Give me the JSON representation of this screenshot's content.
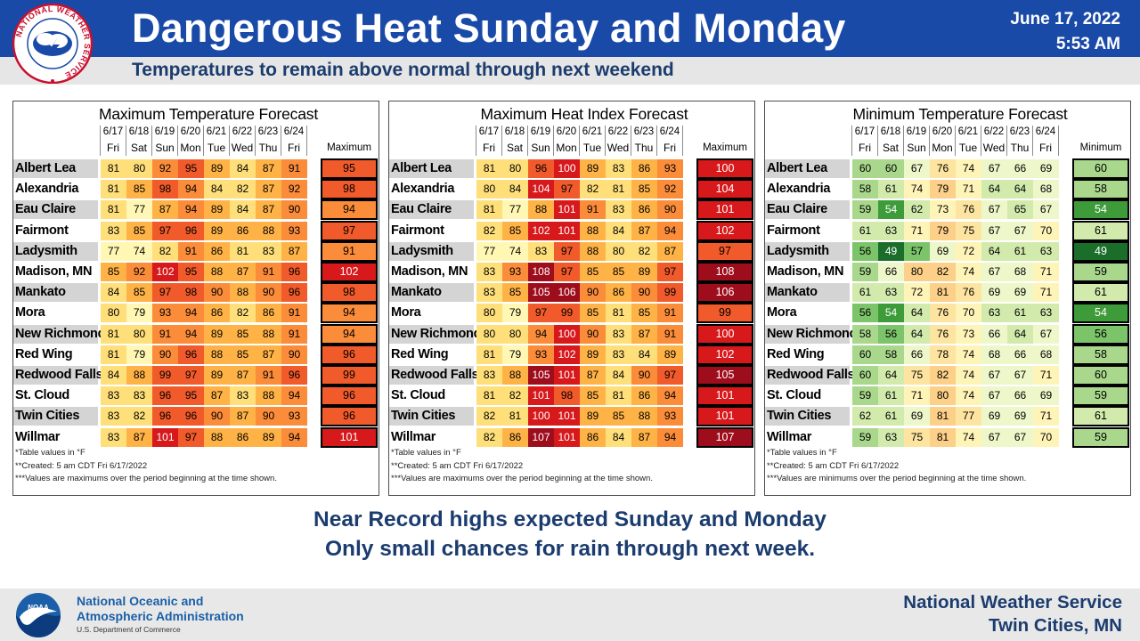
{
  "header": {
    "title": "Dangerous Heat Sunday and Monday",
    "date": "June 17, 2022",
    "time": "5:53 AM",
    "subtitle": "Temperatures to remain above normal through next weekend",
    "logo_text": "NATIONAL WEATHER SERVICE"
  },
  "columns": {
    "dates": [
      "6/17",
      "6/18",
      "6/19",
      "6/20",
      "6/21",
      "6/22",
      "6/23",
      "6/24"
    ],
    "days": [
      "Fri",
      "Sat",
      "Sun",
      "Mon",
      "Tue",
      "Wed",
      "Thu",
      "Fri"
    ]
  },
  "locations": [
    "Albert Lea",
    "Alexandria",
    "Eau Claire",
    "Fairmont",
    "Ladysmith",
    "Madison, MN",
    "Mankato",
    "Mora",
    "New Richmond",
    "Red Wing",
    "Redwood Falls",
    "St. Cloud",
    "Twin Cities",
    "Willmar"
  ],
  "tables": [
    {
      "title": "Maximum Temperature Forecast",
      "summary_label": "Maximum",
      "kind": "heat",
      "values": [
        [
          81,
          80,
          92,
          95,
          89,
          84,
          87,
          91
        ],
        [
          81,
          85,
          98,
          94,
          84,
          82,
          87,
          92
        ],
        [
          81,
          77,
          87,
          94,
          89,
          84,
          87,
          90
        ],
        [
          83,
          85,
          97,
          96,
          89,
          86,
          88,
          93
        ],
        [
          77,
          74,
          82,
          91,
          86,
          81,
          83,
          87
        ],
        [
          85,
          92,
          102,
          95,
          88,
          87,
          91,
          96
        ],
        [
          84,
          85,
          97,
          98,
          90,
          88,
          90,
          96
        ],
        [
          80,
          79,
          93,
          94,
          86,
          82,
          86,
          91
        ],
        [
          81,
          80,
          91,
          94,
          89,
          85,
          88,
          91
        ],
        [
          81,
          79,
          90,
          96,
          88,
          85,
          87,
          90
        ],
        [
          84,
          88,
          99,
          97,
          89,
          87,
          91,
          96
        ],
        [
          83,
          83,
          96,
          95,
          87,
          83,
          88,
          94
        ],
        [
          83,
          82,
          96,
          96,
          90,
          87,
          90,
          93
        ],
        [
          83,
          87,
          101,
          97,
          88,
          86,
          89,
          94
        ]
      ],
      "summary": [
        95,
        98,
        94,
        97,
        91,
        102,
        98,
        94,
        94,
        96,
        99,
        96,
        96,
        101
      ],
      "footnotes": [
        "*Table values in °F",
        "**Created: 5 am CDT Fri 6/17/2022",
        "***Values are maximums over the period beginning at the time shown."
      ]
    },
    {
      "title": "Maximum Heat Index Forecast",
      "summary_label": "Maximum",
      "kind": "heat",
      "values": [
        [
          81,
          80,
          96,
          100,
          89,
          83,
          86,
          93
        ],
        [
          80,
          84,
          104,
          97,
          82,
          81,
          85,
          92
        ],
        [
          81,
          77,
          88,
          101,
          91,
          83,
          86,
          90
        ],
        [
          82,
          85,
          102,
          101,
          88,
          84,
          87,
          94
        ],
        [
          77,
          74,
          83,
          97,
          88,
          80,
          82,
          87
        ],
        [
          83,
          93,
          108,
          97,
          85,
          85,
          89,
          97
        ],
        [
          83,
          85,
          105,
          106,
          90,
          86,
          90,
          99
        ],
        [
          80,
          79,
          97,
          99,
          85,
          81,
          85,
          91
        ],
        [
          80,
          80,
          94,
          100,
          90,
          83,
          87,
          91
        ],
        [
          81,
          79,
          93,
          102,
          89,
          83,
          84,
          89
        ],
        [
          83,
          88,
          105,
          101,
          87,
          84,
          90,
          97
        ],
        [
          81,
          82,
          101,
          98,
          85,
          81,
          86,
          94
        ],
        [
          82,
          81,
          100,
          101,
          89,
          85,
          88,
          93
        ],
        [
          82,
          86,
          107,
          101,
          86,
          84,
          87,
          94
        ]
      ],
      "summary": [
        100,
        104,
        101,
        102,
        97,
        108,
        106,
        99,
        100,
        102,
        105,
        101,
        101,
        107
      ],
      "footnotes": [
        "*Table values in °F",
        "**Created: 5 am CDT Fri 6/17/2022",
        "***Values are maximums over the period beginning at the time shown."
      ]
    },
    {
      "title": "Minimum Temperature Forecast",
      "summary_label": "Minimum",
      "kind": "cool",
      "values": [
        [
          60,
          60,
          67,
          76,
          74,
          67,
          66,
          69
        ],
        [
          58,
          61,
          74,
          79,
          71,
          64,
          64,
          68
        ],
        [
          59,
          54,
          62,
          73,
          76,
          67,
          65,
          67
        ],
        [
          61,
          63,
          71,
          79,
          75,
          67,
          67,
          70
        ],
        [
          56,
          49,
          57,
          69,
          72,
          64,
          61,
          63
        ],
        [
          59,
          66,
          80,
          82,
          74,
          67,
          68,
          71
        ],
        [
          61,
          63,
          72,
          81,
          76,
          69,
          69,
          71
        ],
        [
          56,
          54,
          64,
          76,
          70,
          63,
          61,
          63
        ],
        [
          58,
          56,
          64,
          76,
          73,
          66,
          64,
          67
        ],
        [
          60,
          58,
          66,
          78,
          74,
          68,
          66,
          68
        ],
        [
          60,
          64,
          75,
          82,
          74,
          67,
          67,
          71
        ],
        [
          59,
          61,
          71,
          80,
          74,
          67,
          66,
          69
        ],
        [
          62,
          61,
          69,
          81,
          77,
          69,
          69,
          71
        ],
        [
          59,
          63,
          75,
          81,
          74,
          67,
          67,
          70
        ]
      ],
      "summary": [
        60,
        58,
        54,
        61,
        49,
        59,
        61,
        54,
        56,
        58,
        60,
        59,
        61,
        59
      ],
      "footnotes": [
        "*Table values in °F",
        "**Created: 5 am CDT Fri 6/17/2022",
        "***Values are minimums over the period beginning at the time shown."
      ]
    }
  ],
  "message": {
    "line1": "Near Record highs expected Sunday and Monday",
    "line2": "Only small chances for rain through next week."
  },
  "footer": {
    "noaa_line1": "National Oceanic and",
    "noaa_line2": "Atmospheric Administration",
    "noaa_dept": "U.S. Department of Commerce",
    "noaa_logo_text": "NOAA",
    "nws_line1": "National Weather Service",
    "nws_line2": "Twin Cities, MN"
  }
}
